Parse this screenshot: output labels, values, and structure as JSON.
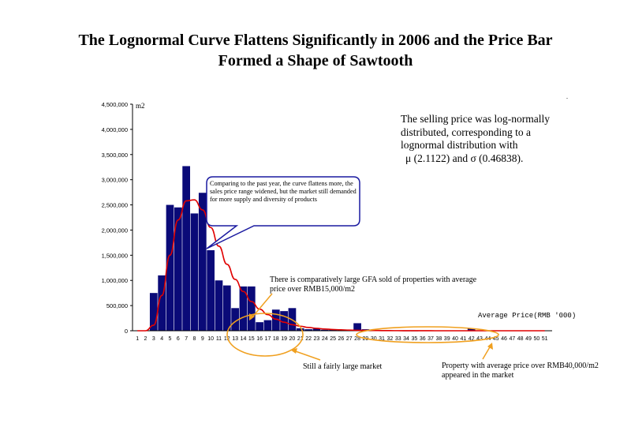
{
  "title_lines": [
    "The Lognormal Curve Flattens Significantly in 2006 and the Price Bar",
    "Formed a Shape of Sawtooth"
  ],
  "side_note": {
    "line1": "The selling price was log-normally",
    "line2": "distributed, corresponding to a",
    "line3": "lognormal distribution with",
    "line4": "μ (2.1122) and σ (0.46838)."
  },
  "corner_mark": ".",
  "callouts": {
    "bubble": "Comparing to the past year, the curve flattens more, the sales price range widened, but the market still demanded for more supply and diversity of products",
    "gfa_line1": "There is comparatively large GFA sold of properties with average",
    "gfa_line2": "price over RMB15,000/m2",
    "market": "Still a fairly large market",
    "over40_line1": "Property with average price over RMB40,000/m2",
    "over40_line2": "appeared in the market"
  },
  "chart_data": {
    "type": "bar",
    "title": "",
    "ylabel": "m2",
    "xlabel": "Average Price(RMB '000)",
    "ylim": [
      0,
      4500000
    ],
    "yticks": [
      0,
      500000,
      1000000,
      1500000,
      2000000,
      2500000,
      3000000,
      3500000,
      4000000,
      4500000
    ],
    "ytick_labels": [
      "0",
      "500,000",
      "1,000,000",
      "1,500,000",
      "2,000,000",
      "2,500,000",
      "3,000,000",
      "3,500,000",
      "4,000,000",
      "4,500,000"
    ],
    "categories": [
      "1",
      "2",
      "3",
      "4",
      "5",
      "6",
      "7",
      "8",
      "9",
      "10",
      "11",
      "12",
      "13",
      "14",
      "15",
      "16",
      "17",
      "18",
      "19",
      "20",
      "21",
      "22",
      "23",
      "24",
      "25",
      "26",
      "27",
      "28",
      "29",
      "30",
      "31",
      "32",
      "33",
      "34",
      "35",
      "36",
      "37",
      "38",
      "39",
      "40",
      "41",
      "42",
      "43",
      "44",
      "45",
      "46",
      "47",
      "48",
      "49",
      "50",
      "51"
    ],
    "series": [
      {
        "type": "bar",
        "color": "#0a0a78",
        "values": [
          0,
          0,
          750000,
          1100000,
          2500000,
          2450000,
          3270000,
          2330000,
          2740000,
          1600000,
          1000000,
          900000,
          450000,
          880000,
          880000,
          170000,
          210000,
          420000,
          390000,
          450000,
          50000,
          30000,
          40000,
          20000,
          25000,
          15000,
          20000,
          150000,
          30000,
          10000,
          10000,
          5000,
          5000,
          3000,
          3000,
          0,
          0,
          0,
          0,
          0,
          0,
          40000,
          0,
          0,
          0,
          0,
          0,
          0,
          0,
          0,
          0
        ]
      },
      {
        "type": "line",
        "color": "#e00000",
        "values": [
          0,
          0,
          110000,
          700000,
          1500000,
          2200000,
          2580000,
          2600000,
          2400000,
          2050000,
          1680000,
          1320000,
          1020000,
          780000,
          580000,
          430000,
          320000,
          230000,
          170000,
          120000,
          90000,
          65000,
          48000,
          35000,
          25000,
          18000,
          13000,
          9000,
          7000,
          5000,
          3500,
          2500,
          1800,
          1200,
          800,
          500,
          300,
          0,
          0,
          0,
          0,
          0,
          0,
          0,
          0,
          0,
          0,
          0,
          0,
          0,
          0
        ]
      }
    ],
    "grid": false,
    "legend": "none"
  }
}
